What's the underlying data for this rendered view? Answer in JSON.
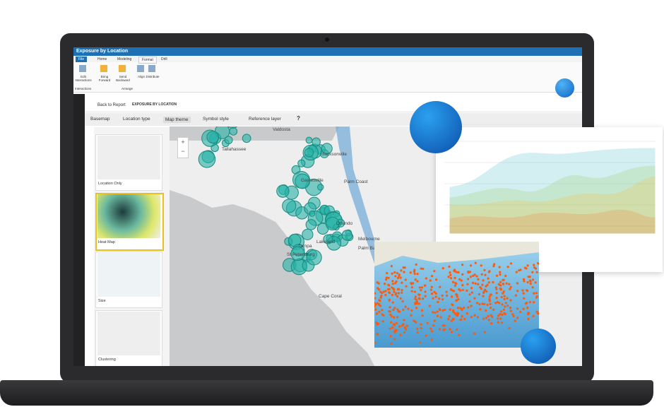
{
  "window": {
    "title": "Exposure by Location"
  },
  "tabs": [
    "File",
    "Home",
    "Modeling",
    "Format",
    "Drill"
  ],
  "ribbon": {
    "buttons": [
      "Edit Interactions",
      "Bring Forward",
      "Send Backward",
      "Align",
      "Distribute"
    ],
    "groups": [
      "Interactions",
      "Arrange"
    ]
  },
  "report": {
    "back": "Back to Report",
    "title": "EXPOSURE BY LOCATION"
  },
  "toolbar": [
    "Basemap",
    "Location type",
    "Map theme",
    "Symbol style",
    "Reference layer",
    "?"
  ],
  "themes": [
    "Location Only",
    "Heat Map",
    "Size",
    "Clustering"
  ],
  "map_labels": [
    "Valdosta",
    "Tallahassee",
    "Jacksonville",
    "Gainesville",
    "Palm Coast",
    "Orlando",
    "Melbourne",
    "Palm Bay",
    "Lakeland",
    "Tampa",
    "St Petersburg",
    "Cape Coral"
  ]
}
